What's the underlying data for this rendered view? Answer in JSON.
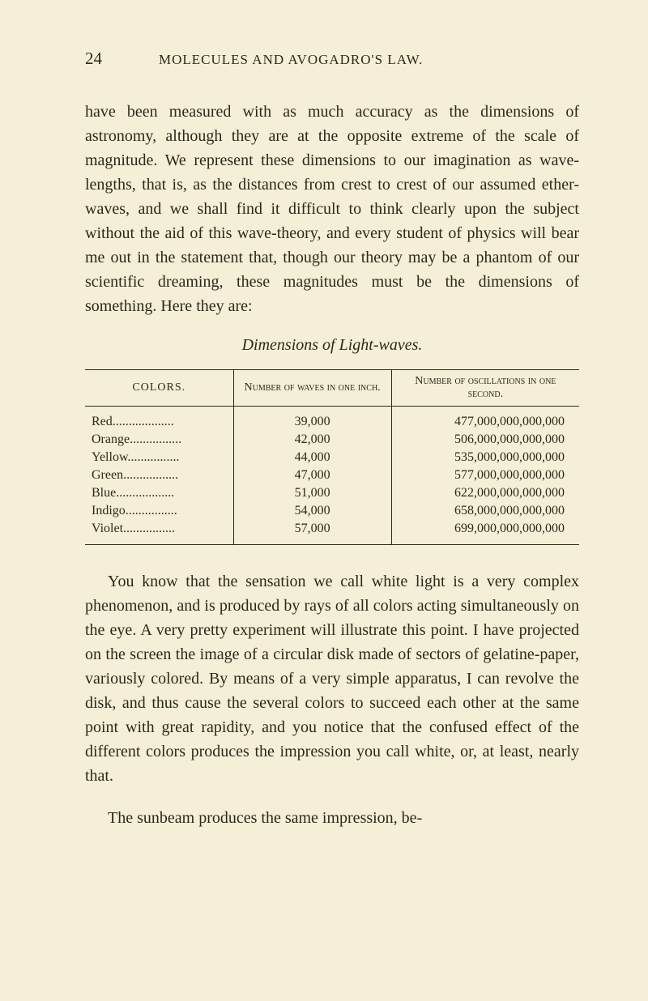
{
  "page_number": "24",
  "running_header": "MOLECULES AND AVOGADRO'S LAW.",
  "paragraph1": "have been measured with as much accuracy as the di­mensions of astronomy, although they are at the oppo­site extreme of the scale of magnitude. We represent these dimensions to our imagination as wave-lengths, that is, as the distances from crest to crest of our as­sumed ether-waves, and we shall find it difficult to think clearly upon the subject without the aid of this wave-theory, and every student of physics will bear me out in the statement that, though our theory may be a phantom of our scientific dreaming, these magnitudes must be the dimensions of something. Here they are:",
  "table_title": "Dimensions of Light-waves.",
  "table": {
    "columns": [
      "COLORS.",
      "Number of waves in one inch.",
      "Number of oscillations in one second."
    ],
    "rows": [
      {
        "color": "Red",
        "waves": "39,000",
        "osc": "477,000,000,000,000"
      },
      {
        "color": "Orange",
        "waves": "42,000",
        "osc": "506,000,000,000,000"
      },
      {
        "color": "Yellow",
        "waves": "44,000",
        "osc": "535,000,000,000,000"
      },
      {
        "color": "Green",
        "waves": "47,000",
        "osc": "577,000,000,000,000"
      },
      {
        "color": "Blue",
        "waves": "51,000",
        "osc": "622,000,000,000,000"
      },
      {
        "color": "Indigo",
        "waves": "54,000",
        "osc": "658,000,000,000,000"
      },
      {
        "color": "Violet",
        "waves": "57,000",
        "osc": "699,000,000,000,000"
      }
    ]
  },
  "paragraph2": "You know that the sensation we call white light is a very complex phenomenon, and is produced by rays of all colors acting simultaneously on the eye. A very pretty experiment will illustrate this point. I have projected on the screen the image of a circular disk made of sectors of gelatine-paper, variously colored. By means of a very simple apparatus, I can revolve the disk, and thus cause the several colors to succeed each other at the same point with great rapidity, and you notice that the confused effect of the different colors produces the impression you call white, or, at least, nearly that.",
  "paragraph3": "The sunbeam produces the same impression, be-",
  "colors": {
    "background": "#f5efd8",
    "text": "#2a2a1a",
    "border": "#2a2a1a"
  },
  "typography": {
    "body_fontsize": 20,
    "header_fontsize": 17,
    "table_fontsize": 16
  }
}
